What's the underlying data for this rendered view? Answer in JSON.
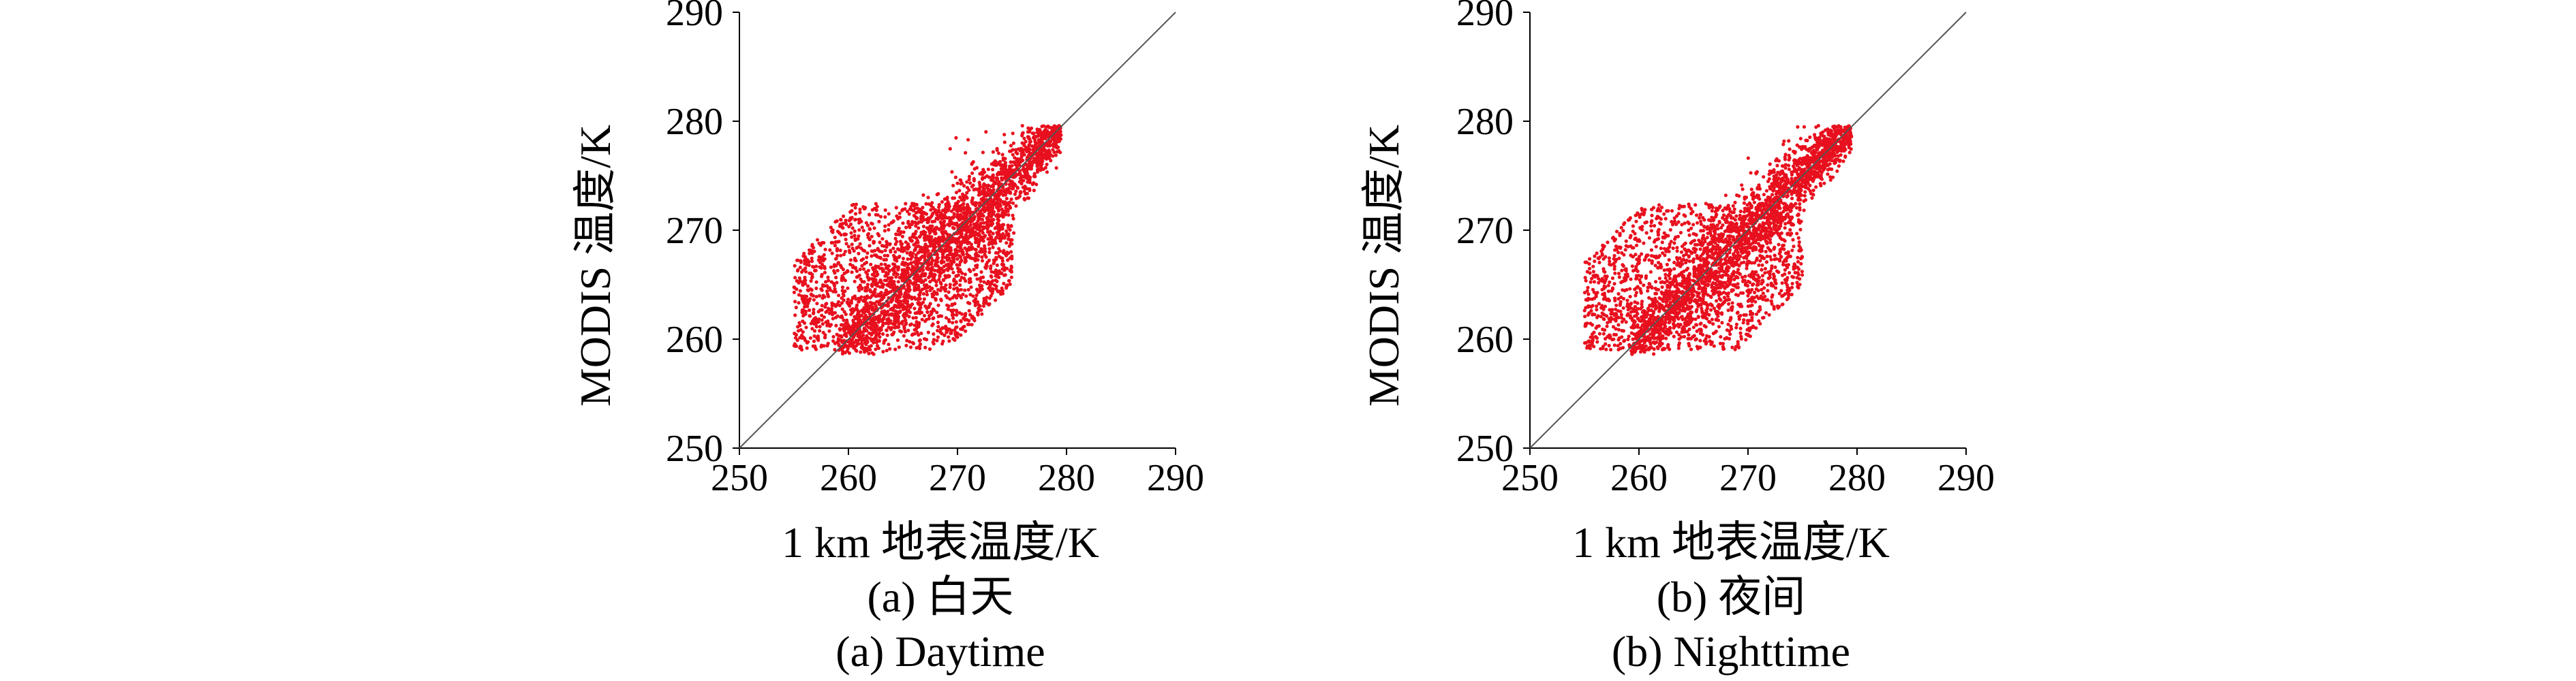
{
  "chart_data": [
    {
      "type": "scatter",
      "panel_caption_cn": "(a) 白天",
      "panel_caption_en": "(a) Daytime",
      "xlabel": "1 km 地表温度/K",
      "ylabel": "MODIS 温度/K",
      "xlim": [
        250,
        290
      ],
      "ylim": [
        250,
        290
      ],
      "xticks": [
        250,
        260,
        270,
        280,
        290
      ],
      "yticks": [
        250,
        260,
        270,
        280,
        290
      ],
      "reference_line": [
        [
          250,
          250
        ],
        [
          290,
          290
        ]
      ],
      "grid": false,
      "point_color": "#e8101e",
      "series": [
        {
          "regions": [
            {
              "x_range": [
                259,
                279.5
              ],
              "y_offset_sd": 1.8,
              "share": 0.55
            },
            {
              "x_range": [
                255,
                275
              ],
              "y_range": [
                259,
                272.5
              ],
              "share": 0.45
            }
          ]
        }
      ]
    },
    {
      "type": "scatter",
      "panel_caption_cn": "(b) 夜间",
      "panel_caption_en": "(b) Nighttime",
      "xlabel": "1 km 地表温度/K",
      "ylabel": "MODIS 温度/K",
      "xlim": [
        250,
        290
      ],
      "ylim": [
        250,
        290
      ],
      "xticks": [
        250,
        260,
        270,
        280,
        290
      ],
      "yticks": [
        250,
        260,
        270,
        280,
        290
      ],
      "reference_line": [
        [
          250,
          250
        ],
        [
          290,
          290
        ]
      ],
      "grid": false,
      "point_color": "#e8101e",
      "series": [
        {
          "regions": [
            {
              "x_range": [
                259,
                279.5
              ],
              "y_offset_sd": 1.6,
              "share": 0.6
            },
            {
              "x_range": [
                255,
                275
              ],
              "y_range": [
                259,
                272.5
              ],
              "share": 0.4
            }
          ]
        }
      ]
    }
  ]
}
